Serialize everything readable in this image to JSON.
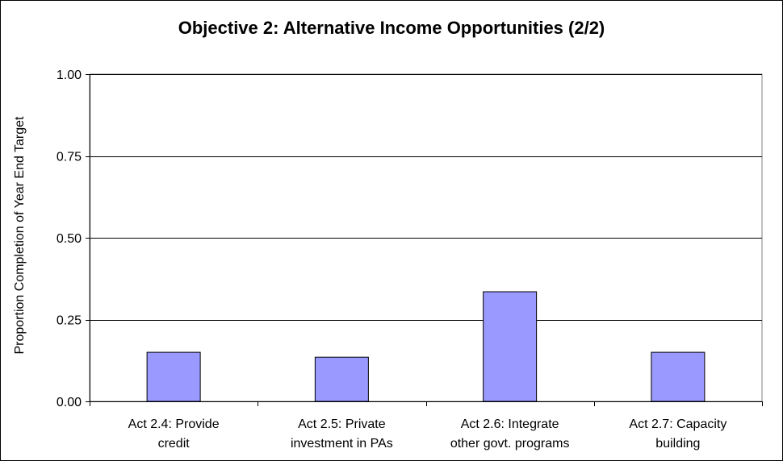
{
  "chart_data": {
    "type": "bar",
    "title": "Objective 2: Alternative Income Opportunities (2/2)",
    "ylabel": "Proportion Completion of Year End Target",
    "xlabel": "",
    "categories": [
      [
        "Act 2.4: Provide",
        "credit"
      ],
      [
        "Act 2.5: Private",
        "investment in PAs"
      ],
      [
        "Act 2.6: Integrate",
        "other govt. programs"
      ],
      [
        "Act 2.7: Capacity",
        "building"
      ]
    ],
    "values": [
      0.15,
      0.135,
      0.335,
      0.15
    ],
    "ylim": [
      0,
      1.0
    ],
    "yticks": [
      "0.00",
      "0.25",
      "0.50",
      "0.75",
      "1.00"
    ],
    "ytick_values": [
      0,
      0.25,
      0.5,
      0.75,
      1.0
    ],
    "grid": true,
    "bar_color": "#9999ff"
  }
}
